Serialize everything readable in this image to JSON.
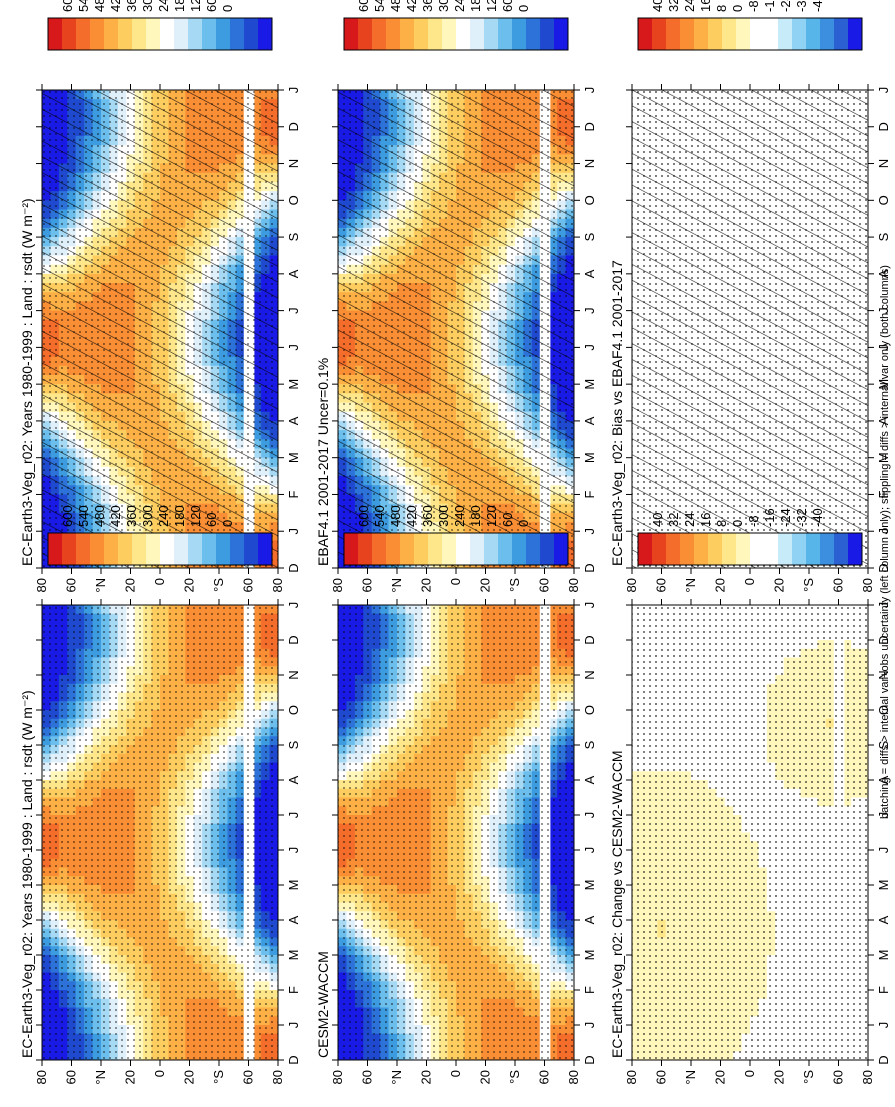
{
  "footer_note": "hatching = diffs > internal var+obs uncertainty (left column only); stippling = diffs > internal var only (both columns)",
  "colorbars": {
    "absolute": [
      "600",
      "540",
      "480",
      "420",
      "360",
      "300",
      "240",
      "180",
      "120",
      "60",
      "0"
    ],
    "difference": [
      "40",
      "32",
      "24",
      "16",
      "8",
      "0",
      "-8",
      "-16",
      "-24",
      "-32",
      "-40"
    ]
  },
  "palettes": {
    "absolute": [
      "#d7191c",
      "#e8431f",
      "#f46d2a",
      "#f98e35",
      "#fdb045",
      "#fecd5f",
      "#fee78a",
      "#fff7bc",
      "#ffffff",
      "#e0f0fb",
      "#a6d9f4",
      "#6cbfed",
      "#3d9be0",
      "#2c72d8",
      "#1f4ad0",
      "#1a1ae6"
    ],
    "difference": [
      "#d7191c",
      "#e8431f",
      "#f46d2a",
      "#f98e35",
      "#fdb045",
      "#fecd5f",
      "#fee78a",
      "#fff7bc",
      "#ffffff",
      "#ffffff",
      "#c7ebf9",
      "#8fd2f3",
      "#58b5ea",
      "#3c8ede",
      "#2a60d2",
      "#1a1ae6"
    ]
  },
  "panels": [
    {
      "id": "obs",
      "title": "EBAF4.1 2001-2017 Uncer=0.1%",
      "hatch": false,
      "stipple": false
    },
    {
      "id": "model",
      "title": "EC-Earth3-Veg_r02: Years 1980-1999 : Land : rsdt (W m⁻²)",
      "hatch": true,
      "stipple": true
    },
    {
      "id": "bias",
      "title": "EC-Earth3-Veg_r02: Bias vs EBAF4.1 2001-2017",
      "hatch": true,
      "stipple": true
    },
    {
      "id": "model2",
      "title": "EC-Earth3-Veg_r02: Years 1980-1999 : Land : rsdt (W m⁻²)",
      "hatch": false,
      "stipple": true
    },
    {
      "id": "cesm",
      "title": "CESM2-WACCM",
      "hatch": false,
      "stipple": true
    },
    {
      "id": "change",
      "title": "EC-Earth3-Veg_r02: Change vs CESM2-WACCM",
      "hatch": false,
      "stipple": true
    }
  ],
  "chart_data": [
    {
      "type": "heatmap",
      "title": "EC-Earth3-Veg_r02: Years 1980-1999 : Land : rsdt (W m⁻²)",
      "x_label": "month",
      "y_label": "latitude",
      "x": [
        "J",
        "F",
        "M",
        "A",
        "M",
        "J",
        "J",
        "A",
        "S",
        "O",
        "N",
        "D",
        "J"
      ],
      "y": [
        "80",
        "60",
        "°N",
        "20",
        "0",
        "20",
        "°S",
        "60",
        "80"
      ],
      "colorbar": [
        600,
        540,
        480,
        420,
        360,
        300,
        240,
        180,
        120,
        60,
        0
      ]
    },
    {
      "type": "heatmap",
      "title": "EBAF4.1 2001-2017 Uncer=0.1%",
      "x": [
        "J",
        "F",
        "M",
        "A",
        "M",
        "J",
        "J",
        "A",
        "S",
        "O",
        "N",
        "D",
        "J"
      ],
      "y": [
        "80",
        "60",
        "°N",
        "20",
        "0",
        "20",
        "°S",
        "60",
        "80"
      ],
      "colorbar": [
        600,
        540,
        480,
        420,
        360,
        300,
        240,
        180,
        120,
        60,
        0
      ]
    },
    {
      "type": "heatmap",
      "title": "EC-Earth3-Veg_r02: Bias vs EBAF4.1 2001-2017",
      "x": [
        "J",
        "F",
        "M",
        "A",
        "M",
        "J",
        "J",
        "A",
        "S",
        "O",
        "N",
        "D",
        "J"
      ],
      "y": [
        "80",
        "60",
        "°N",
        "20",
        "0",
        "20",
        "°S",
        "60",
        "80"
      ],
      "colorbar": [
        40,
        32,
        24,
        16,
        8,
        0,
        -8,
        -16,
        -24,
        -32,
        -40
      ]
    },
    {
      "type": "heatmap",
      "title": "EC-Earth3-Veg_r02: Years 1980-1999 : Land : rsdt (W m⁻²)",
      "x": [
        "J",
        "F",
        "M",
        "A",
        "M",
        "J",
        "J",
        "A",
        "S",
        "O",
        "N",
        "D",
        "J"
      ],
      "y": [
        "80",
        "60",
        "°N",
        "20",
        "0",
        "20",
        "°S",
        "60",
        "80"
      ],
      "colorbar": [
        600,
        540,
        480,
        420,
        360,
        300,
        240,
        180,
        120,
        60,
        0
      ]
    },
    {
      "type": "heatmap",
      "title": "CESM2-WACCM",
      "x": [
        "J",
        "F",
        "M",
        "A",
        "M",
        "J",
        "J",
        "A",
        "S",
        "O",
        "N",
        "D",
        "J"
      ],
      "y": [
        "80",
        "60",
        "°N",
        "20",
        "0",
        "20",
        "°S",
        "60",
        "80"
      ],
      "colorbar": [
        600,
        540,
        480,
        420,
        360,
        300,
        240,
        180,
        120,
        60,
        0
      ]
    },
    {
      "type": "heatmap",
      "title": "EC-Earth3-Veg_r02: Change vs CESM2-WACCM",
      "x": [
        "J",
        "F",
        "M",
        "A",
        "M",
        "J",
        "J",
        "A",
        "S",
        "O",
        "N",
        "D",
        "J"
      ],
      "y": [
        "80",
        "60",
        "°N",
        "20",
        "0",
        "20",
        "°S",
        "60",
        "80"
      ],
      "colorbar": [
        40,
        32,
        24,
        16,
        8,
        0,
        -8,
        -16,
        -24,
        -32,
        -40
      ]
    }
  ],
  "axes": {
    "months": [
      "D",
      "J",
      "F",
      "M",
      "A",
      "M",
      "J",
      "J",
      "A",
      "S",
      "O",
      "N",
      "D",
      "J"
    ],
    "lat_labels": [
      "80",
      "60",
      "°N",
      "20",
      "0",
      "20",
      "°S",
      "60",
      "80"
    ]
  }
}
